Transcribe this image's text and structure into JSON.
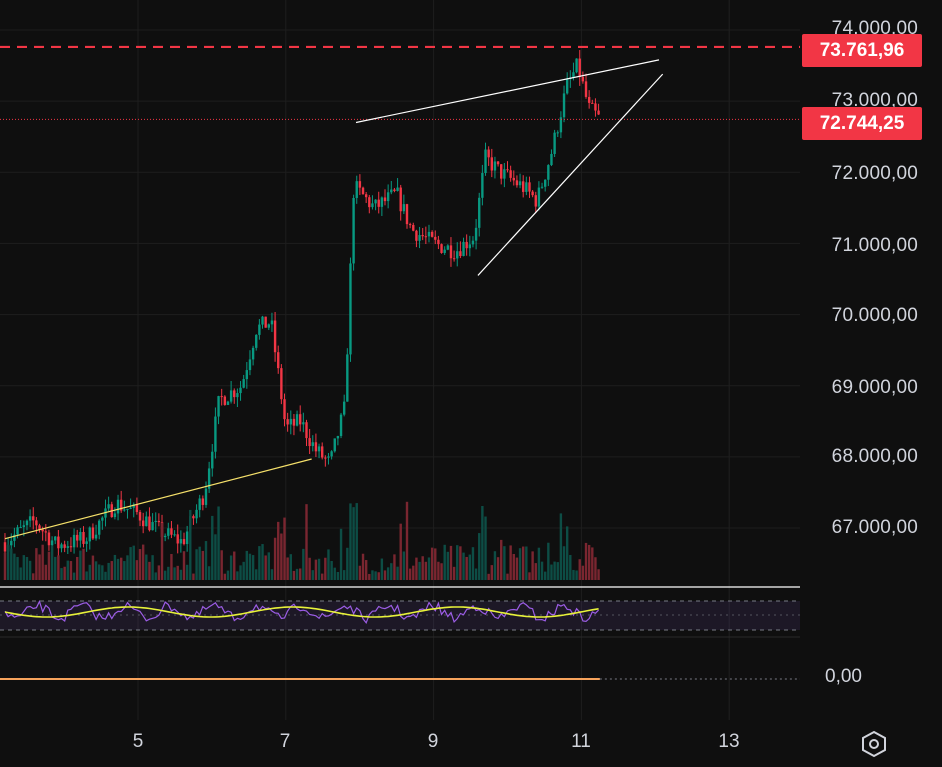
{
  "colors": {
    "background": "#0f0f0f",
    "grid": "#1e1e1e",
    "up": "#089981",
    "down": "#f23645",
    "volume_up": "#0d4d45",
    "volume_down": "#7a2630",
    "price_line": "#f23645",
    "wedge_lines": "#ffffff",
    "trendline": "#f5e06a",
    "rsi_line": "#9c5de6",
    "rsi_ma": "#e8f23a",
    "macd_line": "#f7a35c",
    "axis_text": "#d1d4dc"
  },
  "price_axis": {
    "ticks": [
      "74.000,00",
      "73.000,00",
      "72.000,00",
      "71.000,00",
      "70.000,00",
      "69.000,00",
      "68.000,00",
      "67.000,00"
    ],
    "tick_values": [
      74000,
      73000,
      72000,
      71000,
      70000,
      69000,
      68000,
      67000
    ]
  },
  "time_axis": {
    "ticks": [
      "5",
      "7",
      "9",
      "11",
      "13"
    ]
  },
  "tags": {
    "resistance_label": "73.761,96",
    "last_price_label": "72.744,25"
  },
  "macd_pane": {
    "zero_label": "0,00"
  },
  "settings": {
    "icon": "hexagon-gear-icon"
  },
  "chart_data": {
    "type": "candlestick",
    "title": "",
    "x_axis": {
      "labels": [
        "5",
        "7",
        "9",
        "11",
        "13"
      ],
      "unit": "day"
    },
    "y_axis": {
      "min": 66400,
      "max": 74200
    },
    "resistance_level": 73761.96,
    "last_price": 72744.25,
    "wedge": {
      "upper": [
        {
          "day": 7.95,
          "price": 72700
        },
        {
          "day": 12.05,
          "price": 73580
        }
      ],
      "lower": [
        {
          "day": 9.6,
          "price": 70550
        },
        {
          "day": 12.1,
          "price": 73380
        }
      ]
    },
    "trendline": [
      {
        "day": 3.2,
        "price": 66850
      },
      {
        "day": 7.35,
        "price": 67970
      }
    ],
    "price_path": [
      {
        "day": 3.2,
        "price": 66800
      },
      {
        "day": 3.6,
        "price": 67100
      },
      {
        "day": 3.9,
        "price": 66750
      },
      {
        "day": 4.3,
        "price": 66850
      },
      {
        "day": 4.7,
        "price": 67350
      },
      {
        "day": 5.0,
        "price": 67200
      },
      {
        "day": 5.3,
        "price": 66950
      },
      {
        "day": 5.6,
        "price": 66800
      },
      {
        "day": 5.9,
        "price": 67500
      },
      {
        "day": 6.1,
        "price": 68800
      },
      {
        "day": 6.4,
        "price": 69000
      },
      {
        "day": 6.6,
        "price": 69800
      },
      {
        "day": 6.8,
        "price": 69900
      },
      {
        "day": 7.0,
        "price": 68400
      },
      {
        "day": 7.2,
        "price": 68500
      },
      {
        "day": 7.4,
        "price": 68100
      },
      {
        "day": 7.6,
        "price": 67900
      },
      {
        "day": 7.8,
        "price": 68700
      },
      {
        "day": 7.92,
        "price": 71800
      },
      {
        "day": 8.2,
        "price": 71500
      },
      {
        "day": 8.5,
        "price": 71700
      },
      {
        "day": 8.7,
        "price": 71200
      },
      {
        "day": 9.0,
        "price": 71000
      },
      {
        "day": 9.3,
        "price": 70900
      },
      {
        "day": 9.55,
        "price": 71100
      },
      {
        "day": 9.7,
        "price": 72200
      },
      {
        "day": 9.9,
        "price": 72000
      },
      {
        "day": 10.2,
        "price": 71800
      },
      {
        "day": 10.4,
        "price": 71600
      },
      {
        "day": 10.6,
        "price": 72300
      },
      {
        "day": 10.8,
        "price": 73200
      },
      {
        "day": 10.95,
        "price": 73500
      },
      {
        "day": 11.1,
        "price": 72900
      },
      {
        "day": 11.25,
        "price": 72744
      }
    ],
    "rsi_band": [
      30,
      70
    ],
    "macd_zero": 0
  }
}
